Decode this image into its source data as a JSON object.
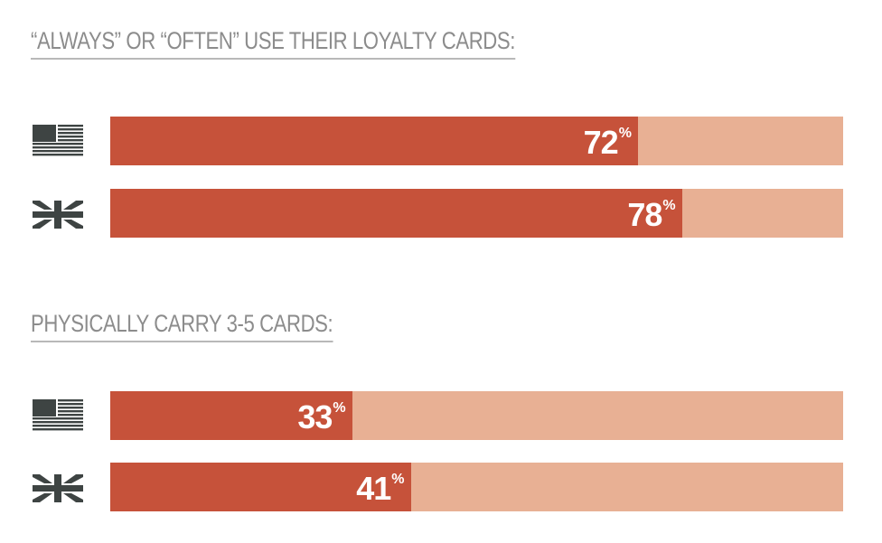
{
  "colors": {
    "value": "#C6523A",
    "remainder": "#E8B094",
    "flag": "#3e4443"
  },
  "chart_data": [
    {
      "type": "bar",
      "orientation": "horizontal",
      "stacked_to": 100,
      "title": "“ALWAYS” OR “OFTEN” USE THEIR LOYALTY CARDS:",
      "categories": [
        "us-flag-icon",
        "uk-flag-icon"
      ],
      "values": [
        72,
        78
      ],
      "labels": [
        "72",
        "78"
      ],
      "unit": "%",
      "xlim": [
        0,
        100
      ]
    },
    {
      "type": "bar",
      "orientation": "horizontal",
      "stacked_to": 100,
      "title": "PHYSICALLY CARRY 3-5 CARDS:",
      "categories": [
        "us-flag-icon",
        "uk-flag-icon"
      ],
      "values": [
        33,
        41
      ],
      "labels": [
        "33",
        "41"
      ],
      "unit": "%",
      "xlim": [
        0,
        100
      ]
    }
  ]
}
